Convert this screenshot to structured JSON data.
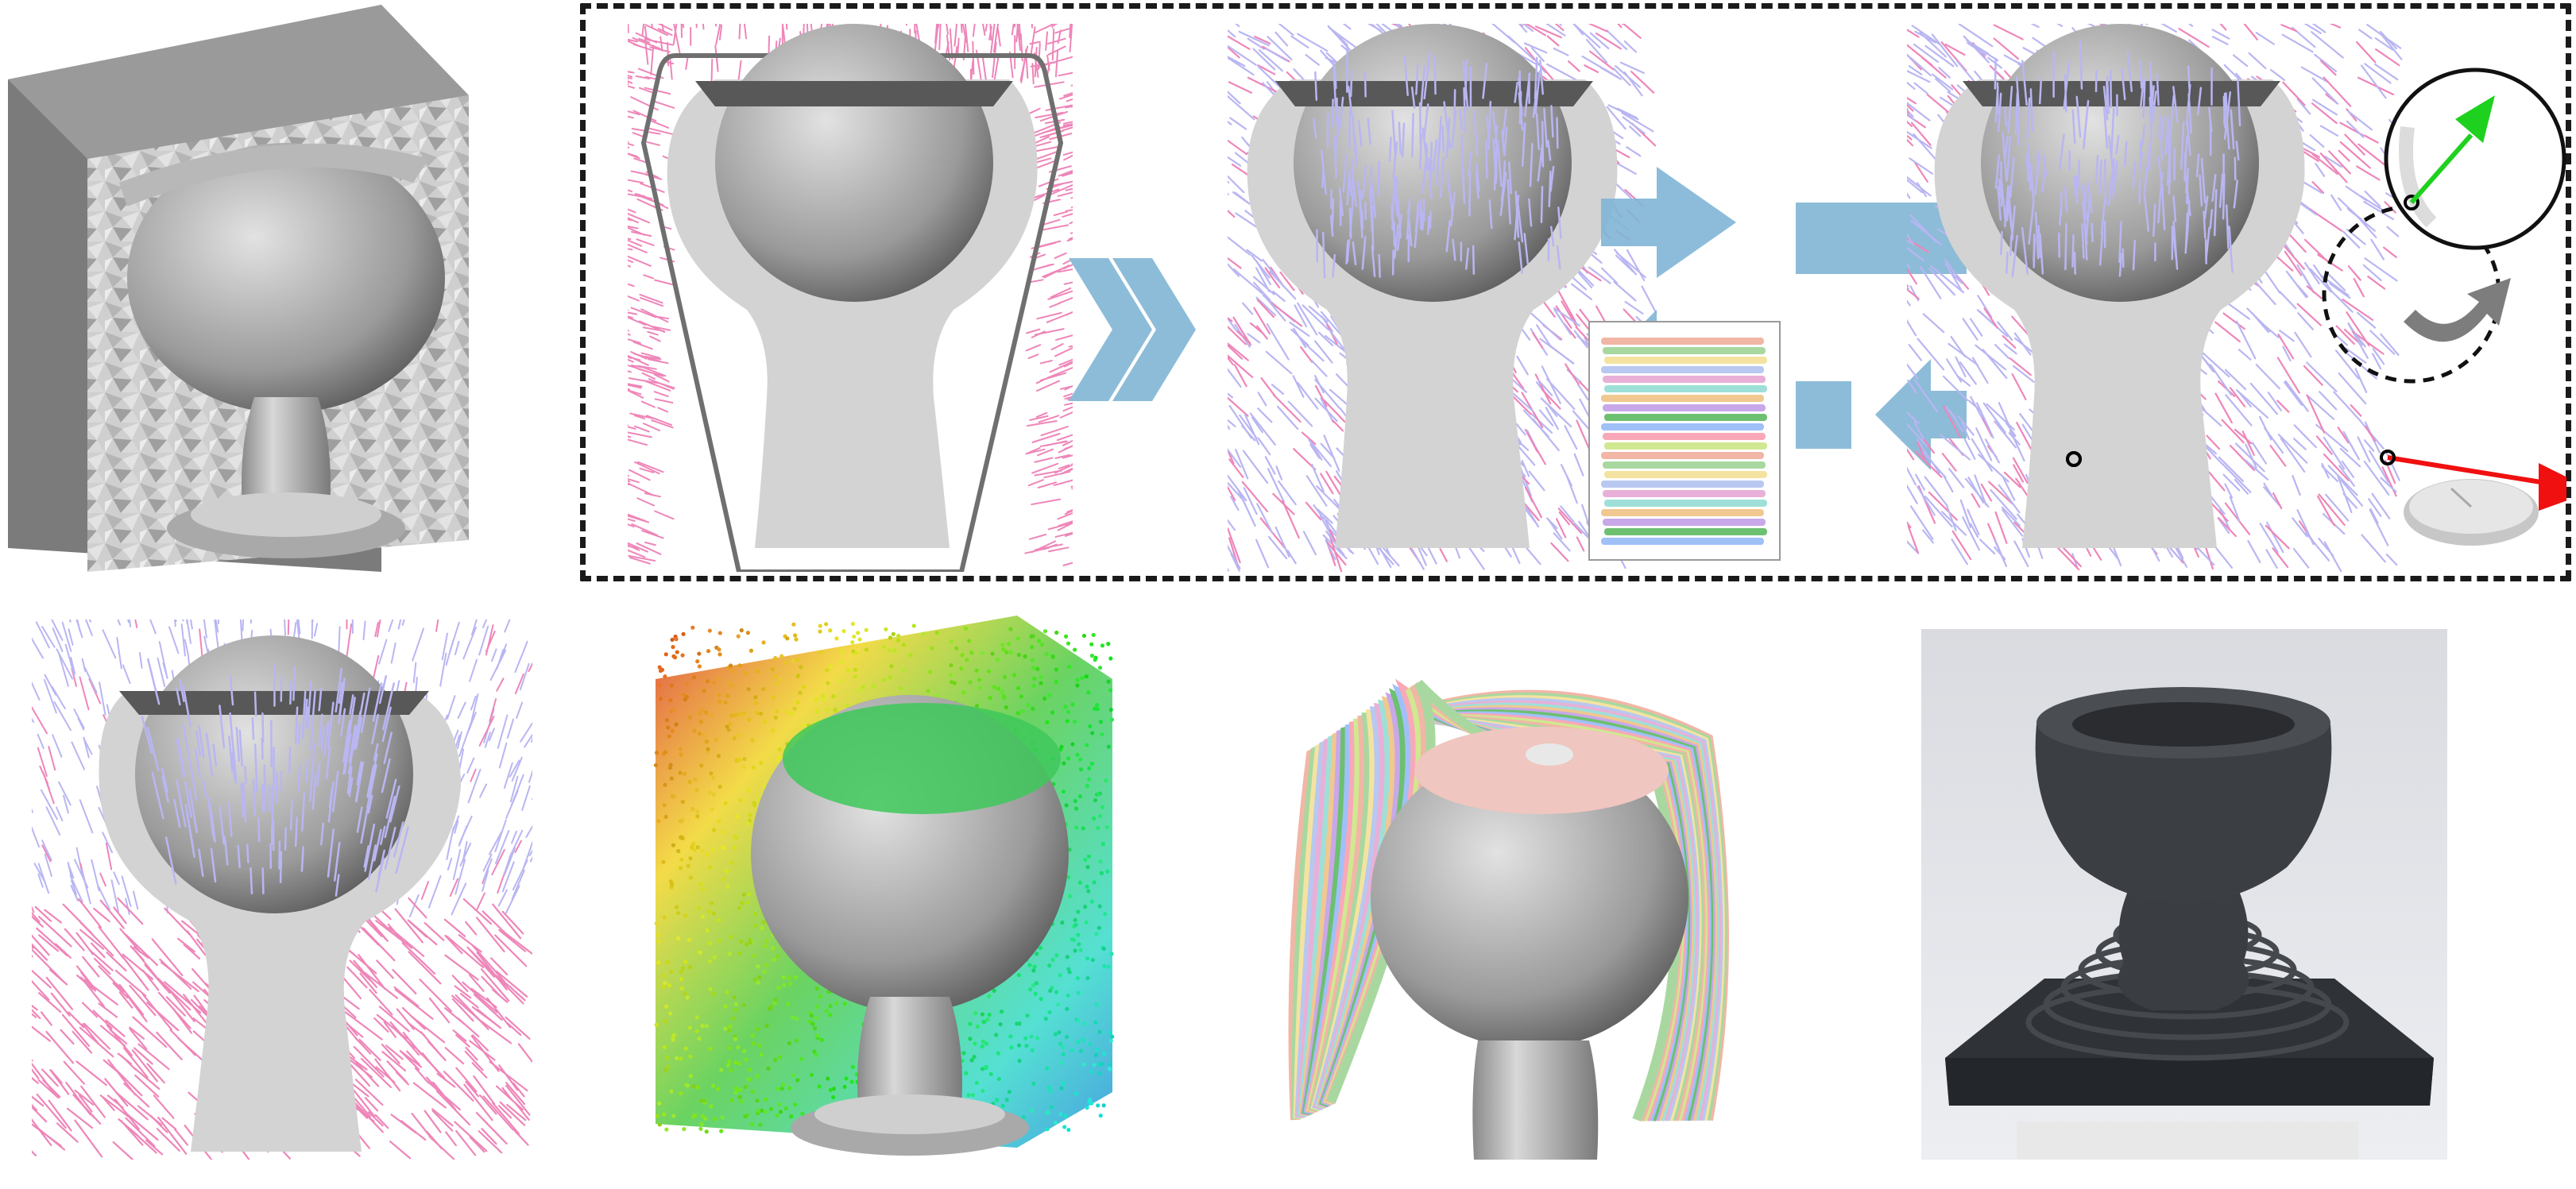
{
  "figure": {
    "text_labels": []
  },
  "panels": {
    "row1": [
      {
        "name": "voxel-box-model"
      },
      {
        "name": "convex-hull-field"
      },
      {
        "name": "field-with-layer-preview"
      },
      {
        "name": "interactive-edit-field"
      }
    ],
    "row2": [
      {
        "name": "optimized-vector-field"
      },
      {
        "name": "scalar-field-point-cloud"
      },
      {
        "name": "curved-layers-model"
      },
      {
        "name": "printed-photo"
      }
    ]
  },
  "colors": {
    "vector_lilac": "#b9b6f2",
    "vector_pink": "#ee86b9",
    "cut_face": "#d3d3d3",
    "flow_arrow": "#8dbcd8",
    "rotate_arrow": "#7d7d7d",
    "green_vector": "#1fd11f",
    "red_vector": "#f01010",
    "print_material": "#3a3d42"
  }
}
